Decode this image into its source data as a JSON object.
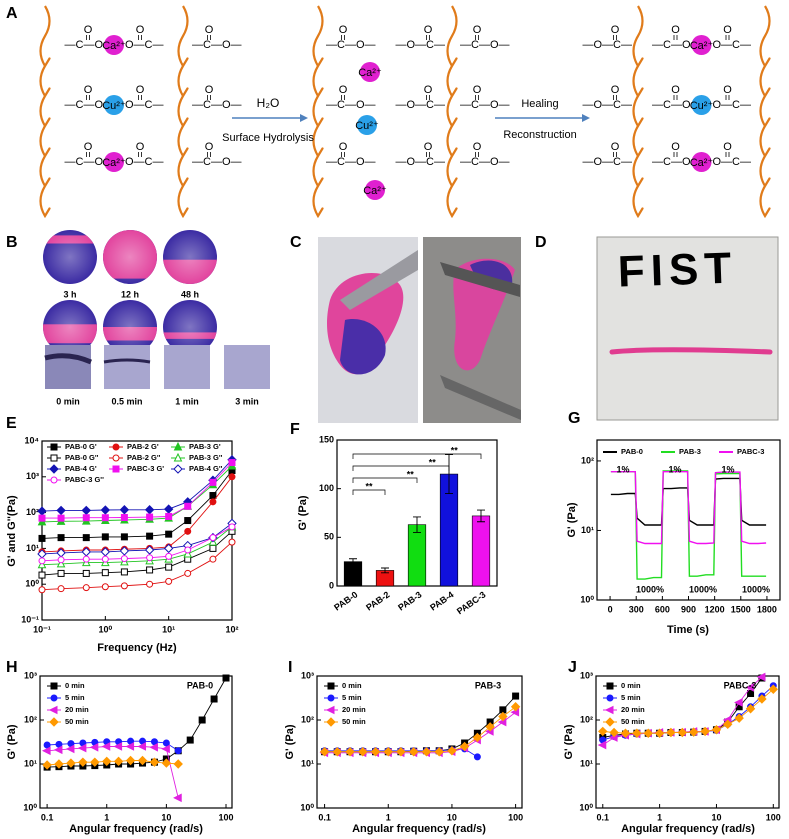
{
  "schematic": {
    "label": "A",
    "ca": "Ca²⁺",
    "cu": "Cu²⁺",
    "bond_left": "—C—O",
    "bond_right": "O—C—",
    "free_right": "—C—O—",
    "free_left": "—O—C—",
    "carbonyl": "O",
    "water": "H₂O",
    "step1": "Surface Hydrolysis",
    "step2_top": "Healing",
    "step2_bottom": "Reconstruction"
  },
  "photos": {
    "B": {
      "label": "B",
      "times": [
        "3 h",
        "12 h",
        "48 h"
      ],
      "scratch_times": [
        "0 min",
        "0.5 min",
        "1 min",
        "3 min"
      ]
    },
    "C": {
      "label": "C"
    },
    "D": {
      "label": "D",
      "text": "FIST"
    }
  },
  "chart_data": [
    {
      "label": "E",
      "type": "line",
      "xscale": "log",
      "yscale": "log",
      "xlabel": "Frequency (Hz)",
      "ylabel": "G' and G''(Pa)",
      "legend": "top-left",
      "x": [
        0.1,
        0.2,
        0.5,
        1,
        2,
        5,
        10,
        20,
        50,
        100
      ],
      "xlim": [
        0.1,
        100
      ],
      "ylim": [
        0.1,
        10000
      ],
      "xticks": [
        {
          "value": 0.1,
          "label": "10⁻¹"
        },
        {
          "value": 1,
          "label": "10⁰"
        },
        {
          "value": 10,
          "label": "10¹"
        },
        {
          "value": 100,
          "label": "10²"
        }
      ],
      "yticks": [
        {
          "value": 0.1,
          "label": "10⁻¹"
        },
        {
          "value": 1,
          "label": "10⁰"
        },
        {
          "value": 10,
          "label": "10¹"
        },
        {
          "value": 100,
          "label": "10²"
        },
        {
          "value": 1000,
          "label": "10³"
        },
        {
          "value": 10000,
          "label": "10⁴"
        }
      ],
      "series": [
        {
          "name": "PAB-0 G'",
          "color": "#000000",
          "marker": "square",
          "filled": true,
          "values": [
            19,
            20,
            20,
            21,
            21,
            22,
            25,
            60,
            300,
            1500
          ]
        },
        {
          "name": "PAB-2 G'",
          "color": "#e01010",
          "marker": "circle",
          "filled": true,
          "values": [
            8,
            8.5,
            9,
            9,
            9.5,
            10,
            11,
            30,
            200,
            1000
          ]
        },
        {
          "name": "PAB-3 G'",
          "color": "#22c422",
          "marker": "triangle",
          "filled": true,
          "values": [
            55,
            57,
            58,
            60,
            62,
            65,
            70,
            150,
            600,
            2000
          ]
        },
        {
          "name": "PAB-0 G''",
          "color": "#000000",
          "marker": "square",
          "filled": false,
          "values": [
            1.8,
            2,
            2,
            2.1,
            2.2,
            2.5,
            3,
            5,
            10,
            30
          ]
        },
        {
          "name": "PAB-2 G''",
          "color": "#e01010",
          "marker": "circle",
          "filled": false,
          "values": [
            0.7,
            0.75,
            0.8,
            0.85,
            0.9,
            1,
            1.2,
            2,
            5,
            15
          ]
        },
        {
          "name": "PAB-3 G''",
          "color": "#22c422",
          "marker": "triangle",
          "filled": false,
          "values": [
            3.5,
            3.7,
            4,
            4,
            4.2,
            4.5,
            5,
            7,
            15,
            40
          ]
        },
        {
          "name": "PAB-4 G'",
          "color": "#1414b4",
          "marker": "diamond",
          "filled": true,
          "values": [
            110,
            115,
            115,
            118,
            120,
            120,
            125,
            200,
            800,
            3000
          ]
        },
        {
          "name": "PABC-3 G'",
          "color": "#f010f0",
          "marker": "square",
          "filled": true,
          "values": [
            70,
            70,
            72,
            72,
            73,
            75,
            78,
            150,
            700,
            2500
          ]
        },
        {
          "name": "PAB-4 G''",
          "color": "#1414b4",
          "marker": "diamond",
          "filled": false,
          "values": [
            7,
            7.5,
            8,
            8,
            8.5,
            9,
            10,
            12,
            20,
            50
          ]
        },
        {
          "name": "PABC-3 G''",
          "color": "#f010f0",
          "marker": "circle",
          "filled": false,
          "values": [
            4.5,
            4.8,
            5,
            5,
            5.2,
            5.5,
            6,
            9,
            20,
            40
          ]
        }
      ]
    },
    {
      "label": "F",
      "type": "bar",
      "ylabel": "G' (Pa)",
      "categories": [
        "PAB-0",
        "PAB-2",
        "PAB-3",
        "PAB-4",
        "PABC-3"
      ],
      "values": [
        25,
        16,
        63,
        115,
        72
      ],
      "errors": [
        3,
        2.5,
        8,
        20,
        6
      ],
      "colors": [
        "#000000",
        "#ee1111",
        "#11dd11",
        "#1111dd",
        "#ee11ee"
      ],
      "ylim": [
        0,
        150
      ],
      "yticks": [
        0,
        50,
        100,
        150
      ],
      "annotations": [
        "**",
        "**",
        "**",
        "**"
      ]
    },
    {
      "label": "G",
      "type": "line",
      "yscale": "log",
      "xlabel": "Time (s)",
      "ylabel": "G' (Pa)",
      "legend": "top",
      "x": [
        10,
        100,
        200,
        290,
        310,
        400,
        500,
        590,
        610,
        700,
        800,
        890,
        910,
        1000,
        1100,
        1190,
        1210,
        1300,
        1400,
        1490,
        1510,
        1600,
        1700,
        1790
      ],
      "xlim": [
        -150,
        1950
      ],
      "ylim": [
        1,
        200
      ],
      "xticks": [
        0,
        300,
        600,
        900,
        1200,
        1500,
        1800
      ],
      "yticks": [
        {
          "value": 1,
          "label": "10⁰"
        },
        {
          "value": 10,
          "label": "10¹"
        },
        {
          "value": 100,
          "label": "10²"
        }
      ],
      "annotations": [
        "1%",
        "1%",
        "1%",
        "1000%",
        "1000%",
        "1000%"
      ],
      "series": [
        {
          "name": "PAB-0",
          "color": "#000000",
          "marker": "none",
          "values": [
            33,
            33,
            34,
            34,
            15,
            12,
            12,
            12,
            40,
            40,
            41,
            41,
            14,
            12,
            12,
            12,
            55,
            56,
            56,
            56,
            14,
            12,
            12,
            12
          ]
        },
        {
          "name": "PAB-3",
          "color": "#22dd22",
          "marker": "none",
          "values": [
            70,
            70,
            70,
            70,
            2,
            2,
            2.1,
            2.1,
            72,
            72,
            72,
            72,
            2.2,
            2.2,
            2.3,
            2.3,
            65,
            66,
            66,
            66,
            2.2,
            2.2,
            2.2,
            2.2
          ]
        },
        {
          "name": "PABC-3",
          "color": "#f010f0",
          "marker": "none",
          "values": [
            70,
            70,
            70,
            70,
            7,
            6.5,
            6.5,
            6.5,
            70,
            70,
            70,
            70,
            7,
            6.5,
            6.5,
            6.6,
            68,
            69,
            69,
            69,
            7,
            6.5,
            6.5,
            6.6
          ]
        }
      ]
    },
    {
      "label": "H",
      "type": "line",
      "xscale": "log",
      "yscale": "log",
      "xlabel": "Angular frequency (rad/s)",
      "ylabel": "G' (Pa)",
      "legend": "top-left",
      "x": [
        0.1,
        0.158,
        0.251,
        0.398,
        0.631,
        1,
        1.58,
        2.51,
        3.98,
        6.31,
        10,
        15.8,
        25.1,
        39.8,
        63.1,
        100
      ],
      "xlim": [
        0.076,
        126
      ],
      "ylim": [
        1,
        1000
      ],
      "xticks": [
        0.1,
        1,
        10,
        100
      ],
      "yticks": [
        {
          "value": 1,
          "label": "10⁰"
        },
        {
          "value": 10,
          "label": "10¹"
        },
        {
          "value": 100,
          "label": "10²"
        },
        {
          "value": 1000,
          "label": "10³"
        }
      ],
      "annotations": [
        "PAB-0"
      ],
      "series": [
        {
          "name": "0 min",
          "color": "#000000",
          "marker": "square",
          "filled": true,
          "values": [
            8.5,
            8.7,
            9,
            9,
            9.2,
            9.5,
            10,
            10,
            10.5,
            11,
            13,
            20,
            35,
            100,
            300,
            900
          ]
        },
        {
          "name": "5 min",
          "color": "#1a1aff",
          "marker": "circle",
          "filled": true,
          "values": [
            27,
            28,
            29,
            30,
            31,
            32,
            32,
            33,
            33,
            32,
            30,
            20,
            null,
            null,
            null,
            null
          ]
        },
        {
          "name": "20 min",
          "color": "#e020e0",
          "marker": "triangle-left",
          "filled": true,
          "values": [
            20,
            21,
            22,
            23,
            24,
            25,
            25,
            25,
            25,
            24,
            22,
            1.7,
            null,
            null,
            null,
            null
          ]
        },
        {
          "name": "50 min",
          "color": "#ff9900",
          "marker": "diamond",
          "filled": true,
          "values": [
            9.5,
            10,
            10.5,
            11,
            11,
            11.5,
            11.5,
            12,
            12,
            11,
            10.5,
            10,
            null,
            null,
            null,
            null
          ]
        }
      ]
    },
    {
      "label": "I",
      "type": "line",
      "xscale": "log",
      "yscale": "log",
      "xlabel": "Angular frequency (rad/s)",
      "ylabel": "G' (Pa)",
      "legend": "top-left",
      "x": [
        0.1,
        0.158,
        0.251,
        0.398,
        0.631,
        1,
        1.58,
        2.51,
        3.98,
        6.31,
        10,
        15.8,
        25.1,
        39.8,
        63.1,
        100
      ],
      "xlim": [
        0.076,
        126
      ],
      "ylim": [
        1,
        1000
      ],
      "xticks": [
        0.1,
        1,
        10,
        100
      ],
      "yticks": [
        {
          "value": 1,
          "label": "10⁰"
        },
        {
          "value": 10,
          "label": "10¹"
        },
        {
          "value": 100,
          "label": "10²"
        },
        {
          "value": 1000,
          "label": "10³"
        }
      ],
      "annotations": [
        "PAB-3"
      ],
      "series": [
        {
          "name": "0 min",
          "color": "#000000",
          "marker": "square",
          "filled": true,
          "values": [
            19,
            19,
            19,
            19,
            19,
            19,
            19,
            19.5,
            20,
            20,
            22,
            30,
            50,
            90,
            170,
            350
          ]
        },
        {
          "name": "5 min",
          "color": "#1a1aff",
          "marker": "circle",
          "filled": true,
          "values": [
            20,
            20,
            20,
            20,
            20,
            20,
            20,
            20,
            20,
            20,
            21,
            22,
            14.5,
            null,
            null,
            null
          ]
        },
        {
          "name": "20 min",
          "color": "#e020e0",
          "marker": "triangle-left",
          "filled": true,
          "values": [
            18,
            18,
            18,
            18,
            18,
            18,
            18,
            18,
            18,
            18,
            19,
            23,
            35,
            55,
            90,
            150
          ]
        },
        {
          "name": "50 min",
          "color": "#ff9900",
          "marker": "diamond",
          "filled": true,
          "values": [
            19,
            19,
            19,
            19,
            19,
            19,
            19,
            19,
            19,
            19,
            20,
            25,
            40,
            70,
            120,
            200
          ]
        }
      ]
    },
    {
      "label": "J",
      "type": "line",
      "xscale": "log",
      "yscale": "log",
      "xlabel": "Angular frequency (rad/s)",
      "ylabel": "G' (Pa)",
      "legend": "top-left",
      "x": [
        0.1,
        0.158,
        0.251,
        0.398,
        0.631,
        1,
        1.58,
        2.51,
        3.98,
        6.31,
        10,
        15.8,
        25.1,
        39.8,
        63.1,
        100
      ],
      "xlim": [
        0.076,
        126
      ],
      "ylim": [
        1,
        1000
      ],
      "xticks": [
        0.1,
        1,
        10,
        100
      ],
      "yticks": [
        {
          "value": 1,
          "label": "10⁰"
        },
        {
          "value": 10,
          "label": "10¹"
        },
        {
          "value": 100,
          "label": "10²"
        },
        {
          "value": 1000,
          "label": "10³"
        }
      ],
      "annotations": [
        "PABC-3"
      ],
      "series": [
        {
          "name": "0 min",
          "color": "#000000",
          "marker": "square",
          "filled": true,
          "values": [
            40,
            45,
            48,
            50,
            50,
            50,
            52,
            52,
            53,
            55,
            60,
            90,
            200,
            400,
            900,
            null
          ]
        },
        {
          "name": "5 min",
          "color": "#1a1aff",
          "marker": "circle",
          "filled": true,
          "values": [
            35,
            42,
            45,
            48,
            50,
            50,
            52,
            52,
            53,
            55,
            58,
            80,
            120,
            200,
            350,
            600
          ]
        },
        {
          "name": "20 min",
          "color": "#e020e0",
          "marker": "triangle-left",
          "filled": true,
          "values": [
            27,
            40,
            45,
            48,
            50,
            52,
            52,
            53,
            55,
            55,
            60,
            100,
            250,
            550,
            950,
            null
          ]
        },
        {
          "name": "50 min",
          "color": "#ff9900",
          "marker": "diamond",
          "filled": true,
          "values": [
            55,
            52,
            50,
            50,
            50,
            50,
            52,
            52,
            53,
            55,
            60,
            80,
            110,
            180,
            300,
            500
          ]
        }
      ]
    }
  ]
}
